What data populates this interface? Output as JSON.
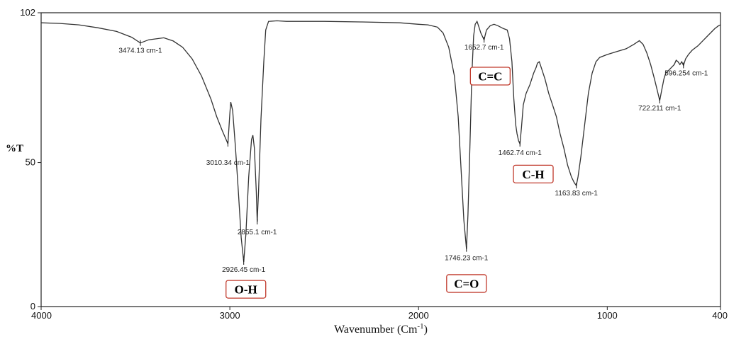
{
  "chart_data": {
    "type": "line",
    "title": "",
    "xlabel": "Wavenumber (Cm",
    "xlabel_sup": "-1",
    "xlabel_close": ")",
    "ylabel": "%T",
    "xlim": [
      4000,
      400
    ],
    "ylim": [
      0,
      102
    ],
    "x_ticks": [
      "4000",
      "3000",
      "2000",
      "1000",
      "400"
    ],
    "y_ticks": [
      "0",
      "50",
      "102"
    ],
    "grid": false,
    "series": [
      {
        "points": [
          [
            4000,
            98.5
          ],
          [
            3900,
            98.3
          ],
          [
            3800,
            97.8
          ],
          [
            3700,
            96.8
          ],
          [
            3600,
            95.5
          ],
          [
            3520,
            93.5
          ],
          [
            3474.13,
            91.5
          ],
          [
            3430,
            92.6
          ],
          [
            3350,
            93.3
          ],
          [
            3300,
            92.2
          ],
          [
            3250,
            90
          ],
          [
            3200,
            86
          ],
          [
            3150,
            80
          ],
          [
            3100,
            72
          ],
          [
            3070,
            66
          ],
          [
            3040,
            61
          ],
          [
            3020,
            58
          ],
          [
            3010.34,
            56.5
          ],
          [
            3000,
            67
          ],
          [
            2995,
            71
          ],
          [
            2985,
            68
          ],
          [
            2970,
            55
          ],
          [
            2955,
            40
          ],
          [
            2940,
            24
          ],
          [
            2926.45,
            15.5
          ],
          [
            2915,
            25
          ],
          [
            2900,
            45
          ],
          [
            2885,
            58
          ],
          [
            2878,
            59.5
          ],
          [
            2870,
            55
          ],
          [
            2860,
            40
          ],
          [
            2855.1,
            29.5
          ],
          [
            2848,
            40
          ],
          [
            2835,
            65
          ],
          [
            2820,
            85
          ],
          [
            2810,
            96
          ],
          [
            2795,
            99
          ],
          [
            2750,
            99.2
          ],
          [
            2700,
            99
          ],
          [
            2500,
            99
          ],
          [
            2300,
            98.8
          ],
          [
            2100,
            98.5
          ],
          [
            2000,
            98
          ],
          [
            1950,
            97.8
          ],
          [
            1900,
            97
          ],
          [
            1870,
            95
          ],
          [
            1840,
            90
          ],
          [
            1810,
            80
          ],
          [
            1790,
            66
          ],
          [
            1775,
            48
          ],
          [
            1760,
            30
          ],
          [
            1746.23,
            20
          ],
          [
            1738,
            32
          ],
          [
            1728,
            55
          ],
          [
            1718,
            80
          ],
          [
            1708,
            94
          ],
          [
            1700,
            98
          ],
          [
            1690,
            99
          ],
          [
            1680,
            97
          ],
          [
            1670,
            95
          ],
          [
            1652.7,
            92.6
          ],
          [
            1640,
            96
          ],
          [
            1620,
            97.5
          ],
          [
            1600,
            98
          ],
          [
            1580,
            97.5
          ],
          [
            1550,
            96.5
          ],
          [
            1530,
            96
          ],
          [
            1518,
            93
          ],
          [
            1505,
            85
          ],
          [
            1495,
            72
          ],
          [
            1485,
            63
          ],
          [
            1478,
            60
          ],
          [
            1470,
            57.5
          ],
          [
            1462.74,
            56.5
          ],
          [
            1455,
            62
          ],
          [
            1445,
            70
          ],
          [
            1430,
            74
          ],
          [
            1410,
            77
          ],
          [
            1390,
            81
          ],
          [
            1377,
            83
          ],
          [
            1370,
            84.5
          ],
          [
            1360,
            85
          ],
          [
            1350,
            83
          ],
          [
            1330,
            79
          ],
          [
            1310,
            74
          ],
          [
            1290,
            70
          ],
          [
            1270,
            66
          ],
          [
            1250,
            60
          ],
          [
            1230,
            55
          ],
          [
            1210,
            49
          ],
          [
            1190,
            45
          ],
          [
            1175,
            43
          ],
          [
            1163.83,
            42
          ],
          [
            1155,
            45
          ],
          [
            1140,
            52
          ],
          [
            1120,
            63
          ],
          [
            1100,
            74
          ],
          [
            1080,
            81
          ],
          [
            1060,
            85
          ],
          [
            1040,
            86.5
          ],
          [
            1000,
            87.5
          ],
          [
            950,
            88.5
          ],
          [
            900,
            89.5
          ],
          [
            860,
            91
          ],
          [
            830,
            92.3
          ],
          [
            810,
            91
          ],
          [
            790,
            88
          ],
          [
            770,
            84
          ],
          [
            750,
            79
          ],
          [
            735,
            75
          ],
          [
            722.211,
            71.5
          ],
          [
            712,
            75
          ],
          [
            700,
            79
          ],
          [
            690,
            81
          ],
          [
            675,
            82
          ],
          [
            660,
            83
          ],
          [
            645,
            84
          ],
          [
            635,
            85.5
          ],
          [
            625,
            85
          ],
          [
            615,
            84
          ],
          [
            605,
            85
          ],
          [
            596.254,
            83.7
          ],
          [
            585,
            86
          ],
          [
            570,
            87.5
          ],
          [
            550,
            89
          ],
          [
            520,
            90.5
          ],
          [
            490,
            92.5
          ],
          [
            460,
            94.5
          ],
          [
            430,
            96.5
          ],
          [
            410,
            97.5
          ],
          [
            400,
            97.8
          ]
        ]
      }
    ],
    "peak_labels": [
      {
        "x": 3474.13,
        "y": 91.5,
        "text": "3474.13 cm-1"
      },
      {
        "x": 3010.34,
        "y": 56.5,
        "text": "3010.34 cm-1"
      },
      {
        "x": 2926.45,
        "y": 15.5,
        "text": "2926.45 cm-1"
      },
      {
        "x": 2855.1,
        "y": 29.5,
        "text": "2855.1 cm-1"
      },
      {
        "x": 1746.23,
        "y": 20,
        "text": "1746.23 cm-1"
      },
      {
        "x": 1652.7,
        "y": 92.6,
        "text": "1652.7 cm-1"
      },
      {
        "x": 1462.74,
        "y": 56.5,
        "text": "1462.74 cm-1"
      },
      {
        "x": 1163.83,
        "y": 42,
        "text": "1163.83 cm-1"
      },
      {
        "x": 722.211,
        "y": 71.5,
        "text": "722.211 cm-1"
      },
      {
        "x": 596.254,
        "y": 83.7,
        "text": "596.254 cm-1"
      }
    ],
    "group_labels": [
      {
        "text": "O-H",
        "x": 2915,
        "y": 6
      },
      {
        "text": "C=O",
        "x": 1746,
        "y": 8
      },
      {
        "text": "C=C",
        "x": 1620,
        "y": 80
      },
      {
        "text": "C-H",
        "x": 1392,
        "y": 46
      }
    ],
    "colors": {
      "line": "#333333",
      "group_box_border": "#c0392b"
    }
  }
}
